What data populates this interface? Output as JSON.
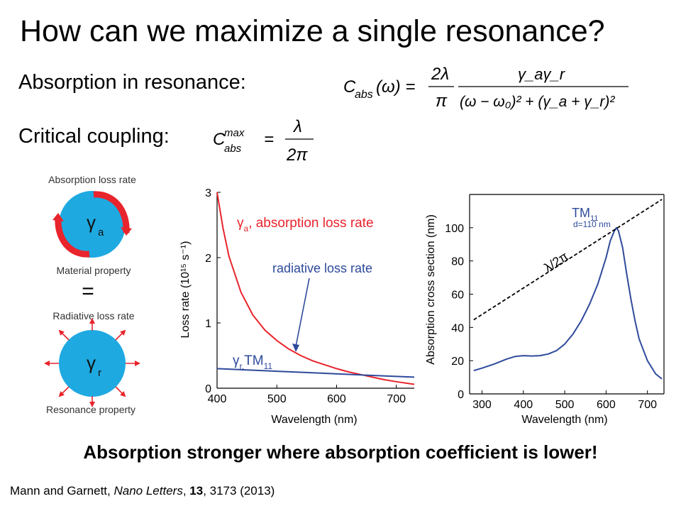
{
  "title": "How can we maximize a single resonance?",
  "absorption_label": "Absorption in resonance:",
  "coupling_label": "Critical coupling:",
  "eq1": {
    "lhs": "C",
    "lhs_sub": "abs",
    "lhs_arg": "(ω) =",
    "frac1_num": "2λ",
    "frac1_den": "π",
    "frac2_num": "γ_aγ_r",
    "frac2_den": "(ω − ω₀)² + (γ_a + γ_r)²"
  },
  "eq2": {
    "lhs": "C",
    "lhs_sup": "max",
    "lhs_sub": "abs",
    "eq": "=",
    "num": "λ",
    "den": "2π"
  },
  "diagram": {
    "absorption_loss_rate_label": "Absorption loss rate",
    "gamma_a_label": "γ",
    "gamma_a_sub": "a",
    "material_property_label": "Material property",
    "equals": "=",
    "radiative_loss_rate_label": "Radiative loss rate",
    "gamma_r_label": "γ",
    "gamma_r_sub": "r",
    "resonance_property_label": "Resonance property",
    "circle_color": "#1ea9e1",
    "arrow_color": "#e8242c"
  },
  "conclusion": "Absorption stronger where absorption coefficient is lower!",
  "citation": {
    "authors": "Mann and Garnett, ",
    "journal": "Nano Letters",
    "sep": ", ",
    "volume": "13",
    "rest": ", 3173 (2013)"
  },
  "chart_data": [
    {
      "type": "line",
      "xlabel": "Wavelength (nm)",
      "ylabel": "Loss rate (10¹⁵ s⁻¹)",
      "xlim": [
        400,
        730
      ],
      "ylim": [
        0,
        3
      ],
      "xticks": [
        400,
        500,
        600,
        700
      ],
      "yticks": [
        0,
        1,
        2,
        3
      ],
      "grid": false,
      "series": [
        {
          "name": "γa, absorption loss rate",
          "color": "#e8242c",
          "x": [
            400,
            410,
            420,
            440,
            460,
            480,
            500,
            520,
            540,
            560,
            580,
            600,
            620,
            640,
            660,
            680,
            700,
            730
          ],
          "y": [
            3.0,
            2.45,
            2.02,
            1.47,
            1.12,
            0.89,
            0.73,
            0.6,
            0.5,
            0.42,
            0.36,
            0.3,
            0.25,
            0.21,
            0.17,
            0.13,
            0.1,
            0.06
          ]
        },
        {
          "name": "γr,TM11",
          "color": "#2e4a9b",
          "x": [
            400,
            450,
            500,
            550,
            600,
            650,
            700,
            730
          ],
          "y": [
            0.3,
            0.28,
            0.26,
            0.24,
            0.22,
            0.2,
            0.18,
            0.17
          ]
        }
      ],
      "annotations": {
        "red_label_main": "γ",
        "red_label_sub": "a",
        "red_label_rest": ", absorption loss rate",
        "blue_arrow_label": "radiative loss rate",
        "blue_label_main": "γ",
        "blue_label_sub": "r,",
        "blue_label_rest": "TM",
        "blue_label_rest_sub": "11"
      }
    },
    {
      "type": "line",
      "xlabel": "Wavelength (nm)",
      "ylabel": "Absorption cross section (nm)",
      "xlim": [
        270,
        740
      ],
      "ylim": [
        0,
        120
      ],
      "xticks": [
        300,
        400,
        500,
        600,
        700
      ],
      "yticks": [
        0,
        20,
        40,
        60,
        80,
        100
      ],
      "grid": false,
      "series": [
        {
          "name": "TM11",
          "color": "#2e4a9b",
          "x": [
            280,
            300,
            330,
            360,
            380,
            400,
            420,
            440,
            460,
            480,
            500,
            520,
            540,
            560,
            580,
            600,
            610,
            620,
            625,
            630,
            640,
            650,
            660,
            670,
            680,
            700,
            720,
            735
          ],
          "y": [
            14,
            15.5,
            18,
            21,
            22.5,
            23,
            22.8,
            23,
            24,
            26,
            30,
            36,
            44,
            54,
            66,
            82,
            92,
            98,
            100,
            98,
            88,
            72,
            57,
            44,
            33,
            20,
            12,
            9
          ]
        },
        {
          "name": "λ/2π",
          "color": "#000000",
          "dashed": true,
          "x": [
            280,
            735
          ],
          "y": [
            44.6,
            117.0
          ]
        }
      ],
      "annotations": {
        "peak_label": "TM",
        "peak_label_sub": "11",
        "peak_sublabel": "d=110 nm",
        "line_label": "λ/2π"
      }
    }
  ]
}
